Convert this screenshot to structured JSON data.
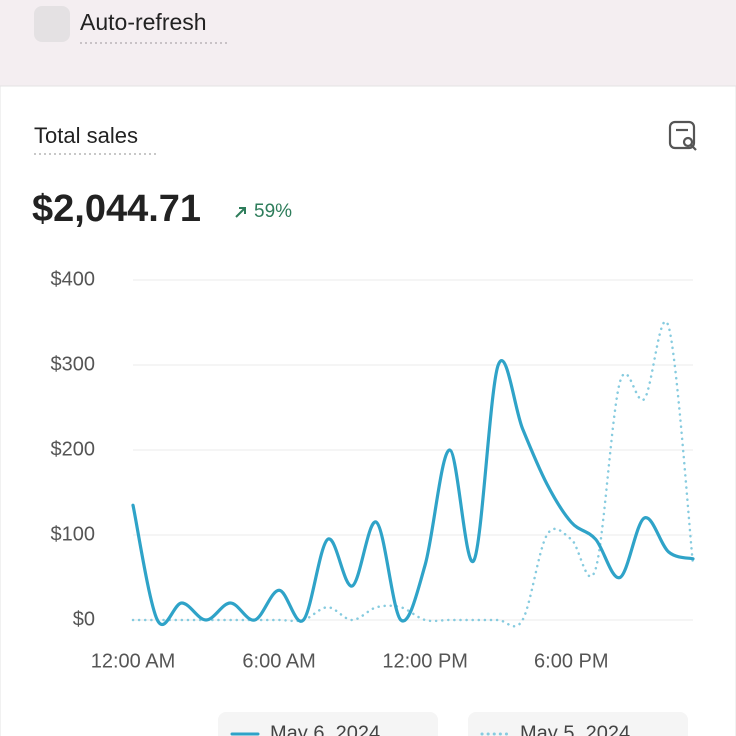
{
  "header": {
    "checkbox_label": "Auto-refresh"
  },
  "card": {
    "title": "Total sales",
    "total": "$2,044.71",
    "change": "59%"
  },
  "chart_data": {
    "type": "line",
    "x": [
      0,
      1,
      2,
      3,
      4,
      5,
      6,
      7,
      8,
      9,
      10,
      11,
      12,
      13,
      14,
      15,
      16,
      17,
      18,
      19,
      20,
      21,
      22,
      23
    ],
    "xlim": [
      0,
      23
    ],
    "xticks": [
      {
        "value": 0,
        "label": "12:00 AM"
      },
      {
        "value": 6,
        "label": "6:00 AM"
      },
      {
        "value": 12,
        "label": "12:00 PM"
      },
      {
        "value": 18,
        "label": "6:00 PM"
      }
    ],
    "ylim": [
      0,
      400
    ],
    "yticks": [
      {
        "value": 0,
        "label": "$0"
      },
      {
        "value": 100,
        "label": "$100"
      },
      {
        "value": 200,
        "label": "$200"
      },
      {
        "value": 300,
        "label": "$300"
      },
      {
        "value": 400,
        "label": "$400"
      }
    ],
    "grid": true,
    "series": [
      {
        "name": "May 6, 2024",
        "color": "#2fa3c8",
        "style": "solid",
        "values": [
          135,
          0,
          20,
          0,
          20,
          0,
          35,
          0,
          95,
          40,
          115,
          0,
          65,
          200,
          70,
          300,
          225,
          160,
          115,
          95,
          50,
          120,
          80,
          72
        ]
      },
      {
        "name": "May 5, 2024",
        "color": "#86cbdf",
        "style": "dotted",
        "values": [
          0,
          0,
          0,
          0,
          0,
          0,
          0,
          0,
          15,
          0,
          15,
          15,
          0,
          0,
          0,
          0,
          0,
          100,
          95,
          60,
          280,
          260,
          345,
          65
        ]
      }
    ]
  }
}
